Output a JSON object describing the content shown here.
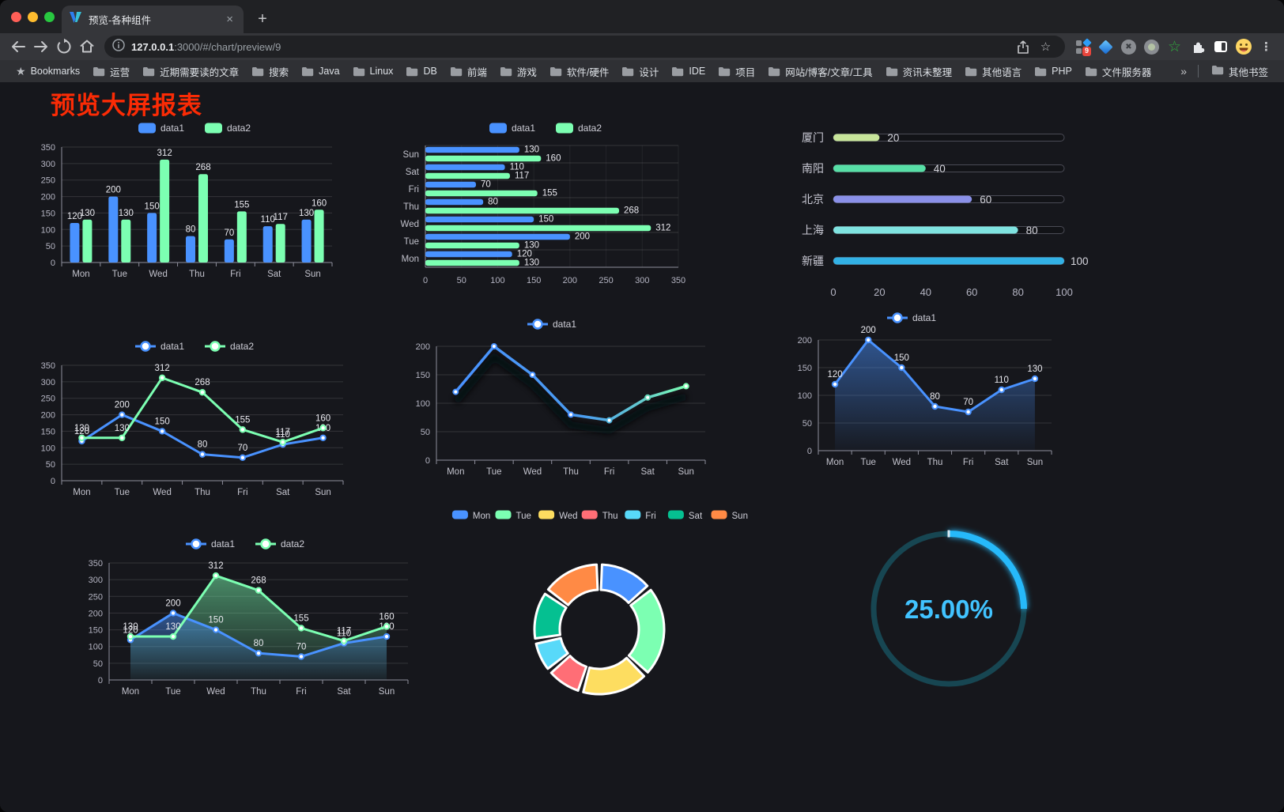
{
  "browser": {
    "tab_title": "预览-各种组件",
    "close_tab_glyph": "×",
    "new_tab_glyph": "+",
    "url": {
      "host": "127.0.0.1",
      "rest": ":3000/#/chart/preview/9"
    },
    "extension_badge": "9",
    "bookmarks_label": "Bookmarks",
    "bookmark_folders": [
      "运营",
      "近期需要读的文章",
      "搜索",
      "Java",
      "Linux",
      "DB",
      "前端",
      "游戏",
      "软件/硬件",
      "设计",
      "IDE",
      "项目",
      "网站/博客/文章/工具",
      "资讯未整理",
      "其他语言",
      "PHP",
      "文件服务器"
    ],
    "bookmarks_overflow": "»",
    "other_bookmarks": "其他书签"
  },
  "page": {
    "title": "预览大屏报表",
    "title_color": "#fb2b05"
  },
  "chart_data": [
    {
      "id": "grouped-bar",
      "type": "bar",
      "categories": [
        "Mon",
        "Tue",
        "Wed",
        "Thu",
        "Fri",
        "Sat",
        "Sun"
      ],
      "series": [
        {
          "name": "data1",
          "color": "#4992ff",
          "values": [
            120,
            200,
            150,
            80,
            70,
            110,
            130
          ]
        },
        {
          "name": "data2",
          "color": "#7cffb2",
          "values": [
            130,
            130,
            312,
            268,
            155,
            117,
            160
          ]
        }
      ],
      "ylim": [
        0,
        350
      ],
      "yticks": [
        0,
        50,
        100,
        150,
        200,
        250,
        300,
        350
      ],
      "legend_position": "top",
      "grid": true
    },
    {
      "id": "grouped-horizontal-bar",
      "type": "bar-horizontal",
      "categories": [
        "Mon",
        "Tue",
        "Wed",
        "Thu",
        "Fri",
        "Sat",
        "Sun"
      ],
      "series": [
        {
          "name": "data1",
          "color": "#4992ff",
          "values": [
            120,
            200,
            150,
            80,
            70,
            110,
            130
          ]
        },
        {
          "name": "data2",
          "color": "#7cffb2",
          "values": [
            130,
            130,
            312,
            268,
            155,
            117,
            160
          ]
        }
      ],
      "xlim": [
        0,
        350
      ],
      "xticks": [
        0,
        50,
        100,
        150,
        200,
        250,
        300,
        350
      ],
      "legend_position": "top",
      "grid": true
    },
    {
      "id": "city-progress",
      "type": "progress-bars",
      "max": 100,
      "xticks": [
        0,
        20,
        40,
        60,
        80,
        100
      ],
      "items": [
        {
          "label": "厦门",
          "value": 20,
          "color": "#c7e59a"
        },
        {
          "label": "南阳",
          "value": 40,
          "color": "#57dfa6"
        },
        {
          "label": "北京",
          "value": 60,
          "color": "#8a90e8"
        },
        {
          "label": "上海",
          "value": 80,
          "color": "#7fe3e0"
        },
        {
          "label": "新疆",
          "value": 100,
          "color": "#32b1e5"
        }
      ]
    },
    {
      "id": "two-series-line",
      "type": "line",
      "categories": [
        "Mon",
        "Tue",
        "Wed",
        "Thu",
        "Fri",
        "Sat",
        "Sun"
      ],
      "series": [
        {
          "name": "data1",
          "color": "#4992ff",
          "values": [
            120,
            200,
            150,
            80,
            70,
            110,
            130
          ]
        },
        {
          "name": "data2",
          "color": "#7cffb2",
          "values": [
            130,
            130,
            312,
            268,
            155,
            117,
            160
          ]
        }
      ],
      "ylim": [
        0,
        350
      ],
      "yticks": [
        0,
        50,
        100,
        150,
        200,
        250,
        300,
        350
      ],
      "labels": true,
      "legend_position": "top"
    },
    {
      "id": "gradient-line",
      "type": "line-gradient",
      "categories": [
        "Mon",
        "Tue",
        "Wed",
        "Thu",
        "Fri",
        "Sat",
        "Sun"
      ],
      "series": [
        {
          "name": "data1",
          "values": [
            120,
            200,
            150,
            80,
            70,
            110,
            130
          ],
          "gradient": [
            "#4992ff",
            "#7cffb2"
          ]
        }
      ],
      "ylim": [
        0,
        200
      ],
      "yticks": [
        0,
        50,
        100,
        150,
        200
      ],
      "labels": false,
      "legend_position": "top"
    },
    {
      "id": "area-single",
      "type": "area",
      "categories": [
        "Mon",
        "Tue",
        "Wed",
        "Thu",
        "Fri",
        "Sat",
        "Sun"
      ],
      "series": [
        {
          "name": "data1",
          "color": "#4992ff",
          "values": [
            120,
            200,
            150,
            80,
            70,
            110,
            130
          ]
        }
      ],
      "ylim": [
        0,
        200
      ],
      "yticks": [
        0,
        50,
        100,
        150,
        200
      ],
      "labels": true,
      "legend_position": "top"
    },
    {
      "id": "area-two-series",
      "type": "area",
      "categories": [
        "Mon",
        "Tue",
        "Wed",
        "Thu",
        "Fri",
        "Sat",
        "Sun"
      ],
      "series": [
        {
          "name": "data1",
          "color": "#4992ff",
          "values": [
            120,
            200,
            150,
            80,
            70,
            110,
            130
          ]
        },
        {
          "name": "data2",
          "color": "#7cffb2",
          "values": [
            130,
            130,
            312,
            268,
            155,
            117,
            160
          ]
        }
      ],
      "ylim": [
        0,
        350
      ],
      "yticks": [
        0,
        50,
        100,
        150,
        200,
        250,
        300,
        350
      ],
      "labels": true,
      "legend_position": "top"
    },
    {
      "id": "donut",
      "type": "pie",
      "items": [
        {
          "label": "Mon",
          "value": 120,
          "color": "#4992ff"
        },
        {
          "label": "Tue",
          "value": 200,
          "color": "#7cffb2"
        },
        {
          "label": "Wed",
          "value": 150,
          "color": "#fddd60"
        },
        {
          "label": "Thu",
          "value": 80,
          "color": "#ff6e76"
        },
        {
          "label": "Fri",
          "value": 70,
          "color": "#58d9f9"
        },
        {
          "label": "Sat",
          "value": 110,
          "color": "#05c091"
        },
        {
          "label": "Sun",
          "value": 130,
          "color": "#ff8a45"
        }
      ],
      "legend_position": "top"
    },
    {
      "id": "ring-progress",
      "type": "gauge",
      "value": 25,
      "display": "25.00%",
      "color": "#28b9fa",
      "track_color": "#174652",
      "text_color": "#41c3ff"
    }
  ]
}
